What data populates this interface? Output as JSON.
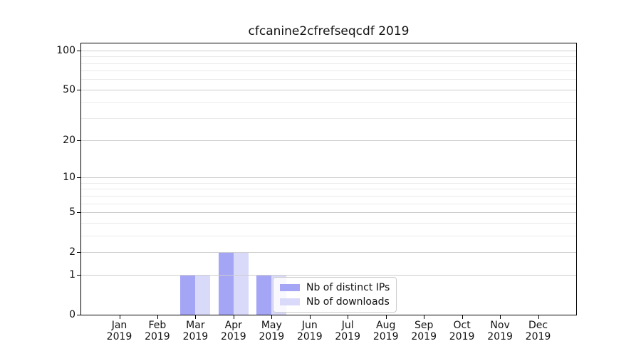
{
  "title": "cfcanine2cfrefseqcdf 2019",
  "chart_data": {
    "type": "bar",
    "title": "cfcanine2cfrefseqcdf 2019",
    "scale": "log1p",
    "categories": [
      "Jan",
      "Feb",
      "Mar",
      "Apr",
      "May",
      "Jun",
      "Jul",
      "Aug",
      "Sep",
      "Oct",
      "Nov",
      "Dec"
    ],
    "category_year": "2019",
    "series": [
      {
        "name": "Nb of distinct IPs",
        "color": "#a5a5f5",
        "values": [
          0,
          0,
          1,
          2,
          1,
          0,
          0,
          0,
          0,
          0,
          0,
          0
        ]
      },
      {
        "name": "Nb of downloads",
        "color": "#d9d9fa",
        "values": [
          0,
          0,
          1,
          2,
          1,
          0,
          0,
          0,
          0,
          0,
          0,
          0
        ]
      }
    ],
    "xlabel": "",
    "ylabel": "",
    "ylim": [
      0,
      113
    ],
    "y_major_ticks": [
      0,
      1,
      2,
      5,
      10,
      20,
      50,
      100
    ],
    "y_minor_ticks": [
      3,
      4,
      6,
      7,
      8,
      9,
      30,
      40,
      60,
      70,
      80,
      90
    ],
    "grid": "major and minor horizontal, drawn over bars",
    "legend_position": "inside lower-center"
  },
  "colors": {
    "distinct_ips": "#a5a5f5",
    "downloads": "#d9d9fa",
    "grid_major": "#cdcdcd",
    "grid_minor": "#eaeaea",
    "axis": "#000000",
    "background": "#ffffff"
  },
  "legend": {
    "entries": [
      {
        "label": "Nb of distinct IPs",
        "color": "#a5a5f5"
      },
      {
        "label": "Nb of downloads",
        "color": "#d9d9fa"
      }
    ]
  }
}
